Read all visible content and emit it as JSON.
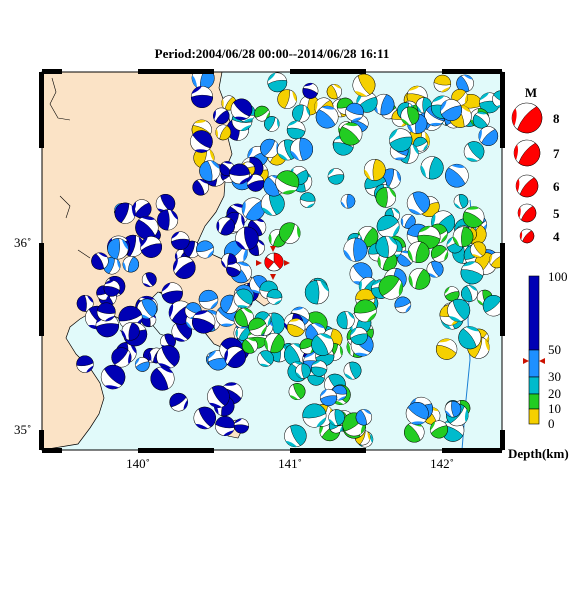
{
  "title": "Period:2004/06/28 00:00--2014/06/28 16:11",
  "axes": {
    "x_ticks": [
      {
        "value": 140,
        "label": "140˚"
      },
      {
        "value": 141,
        "label": "141˚"
      },
      {
        "value": 142,
        "label": "142˚"
      }
    ],
    "y_ticks": [
      {
        "value": 36,
        "label": "36˚"
      },
      {
        "value": 35,
        "label": "35˚"
      }
    ],
    "lon_range": [
      139.35,
      142.35
    ],
    "lat_range": [
      34.88,
      36.92
    ]
  },
  "legend": {
    "magnitude_label": "M",
    "magnitudes": [
      "8",
      "7",
      "6",
      "5",
      "4"
    ],
    "depth_label": "Depth(km)",
    "depth_ticks": [
      "100",
      "50",
      "30",
      "20",
      "10",
      "0"
    ],
    "depth_colors": {
      "shallow_0_10": "#f5d000",
      "mid_10_20": "#22cc22",
      "mid_20_30": "#00bbcc",
      "deep_30_50": "#1e90ff",
      "deep_50_100": "#0000b4"
    }
  },
  "colors": {
    "land": "#fbe3c6",
    "sea": "#e1fafa",
    "main_event": "#ff0000",
    "station_marker": "#cc1100"
  }
}
